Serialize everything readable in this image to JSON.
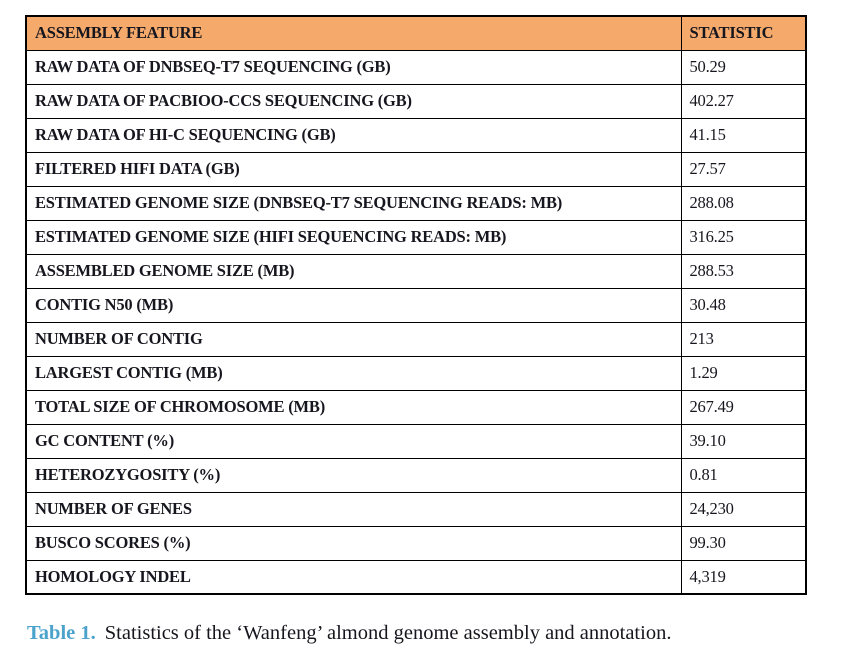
{
  "table": {
    "headers": [
      "ASSEMBLY FEATURE",
      "STATISTIC"
    ],
    "rows": [
      {
        "feature": "RAW DATA OF DNBSEQ-T7 SEQUENCING (GB)",
        "statistic": "50.29"
      },
      {
        "feature": "RAW DATA OF PACBIOO-CCS SEQUENCING (GB)",
        "statistic": "402.27"
      },
      {
        "feature": "RAW DATA OF HI-C SEQUENCING (GB)",
        "statistic": "41.15"
      },
      {
        "feature": "FILTERED HIFI DATA (GB)",
        "statistic": "27.57"
      },
      {
        "feature": "ESTIMATED GENOME SIZE (DNBSEQ-T7 SEQUENCING READS: MB)",
        "statistic": "288.08"
      },
      {
        "feature": "ESTIMATED GENOME SIZE (HIFI SEQUENCING READS: MB)",
        "statistic": "316.25"
      },
      {
        "feature": "ASSEMBLED GENOME SIZE (MB)",
        "statistic": "288.53"
      },
      {
        "feature": "CONTIG N50 (MB)",
        "statistic": "30.48"
      },
      {
        "feature": "NUMBER OF CONTIG",
        "statistic": "213"
      },
      {
        "feature": "LARGEST CONTIG (MB)",
        "statistic": "1.29"
      },
      {
        "feature": "TOTAL SIZE OF CHROMOSOME (MB)",
        "statistic": "267.49"
      },
      {
        "feature": "GC CONTENT (%)",
        "statistic": "39.10"
      },
      {
        "feature": "HETEROZYGOSITY (%)",
        "statistic": "0.81"
      },
      {
        "feature": "NUMBER OF GENES",
        "statistic": "24,230"
      },
      {
        "feature": "BUSCO SCORES (%)",
        "statistic": "99.30"
      },
      {
        "feature": "HOMOLOGY INDEL",
        "statistic": "4,319"
      }
    ]
  },
  "caption": {
    "label": "Table 1.",
    "text": "Statistics of the ‘Wanfeng’ almond genome assembly and annotation."
  },
  "colors": {
    "header_bg": "#F5AA6B",
    "border": "#000000",
    "text": "#16161E",
    "caption_label": "#4BA3CC",
    "page_bg": "#FFFFFF"
  }
}
